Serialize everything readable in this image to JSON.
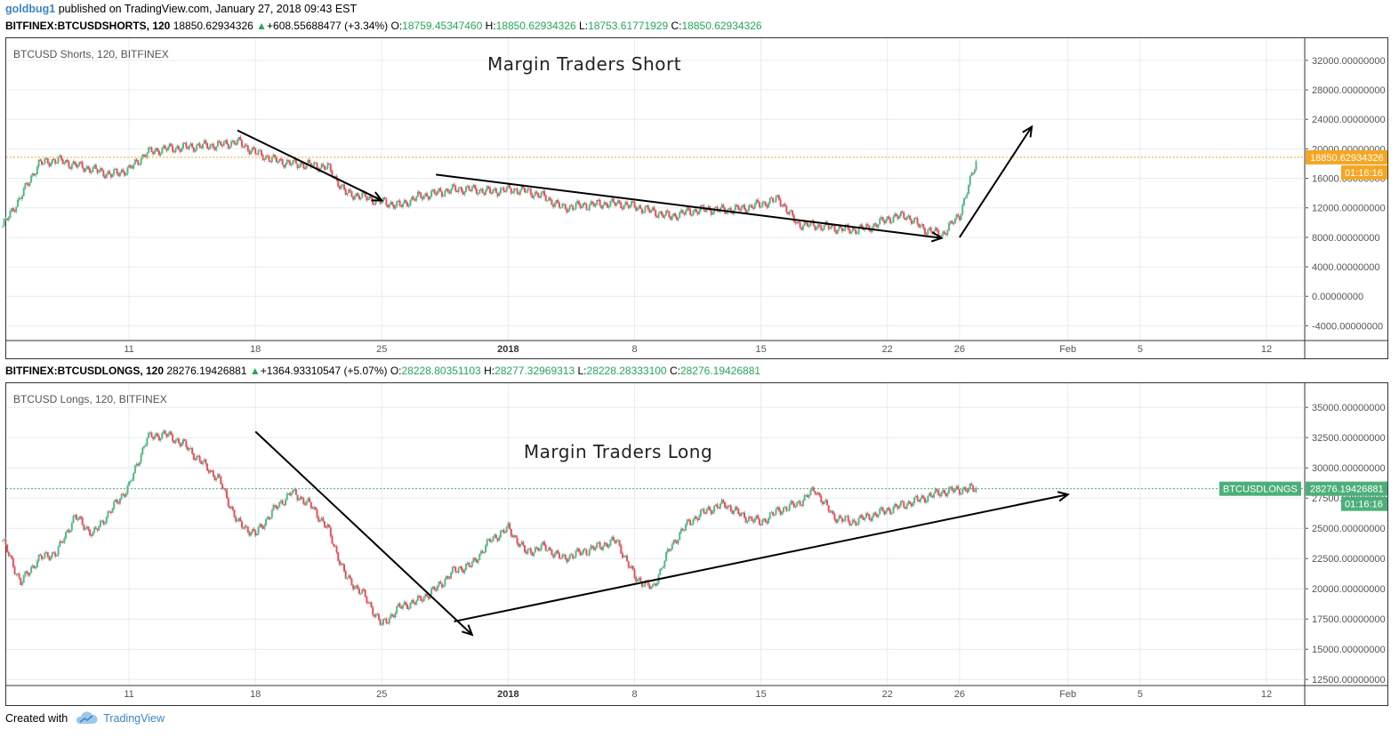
{
  "header": {
    "user": "goldbug1",
    "published": "published on TradingView.com, January 27, 2018 09:43 EST"
  },
  "shorts_header": {
    "symbol": "BITFINEX:BTCUSDSHORTS, 120",
    "price": "18850.62934326",
    "change": "+608.55688477 (+3.34%)",
    "o_label": "O:",
    "o": "18759.45347460",
    "h_label": "H:",
    "h": "18850.62934326",
    "l_label": "L:",
    "l": "18753.61771929",
    "c_label": "C:",
    "c": "18850.62934326"
  },
  "longs_header": {
    "symbol": "BITFINEX:BTCUSDLONGS, 120",
    "price": "28276.19426881",
    "change": "+1364.93310547 (+5.07%)",
    "o_label": "O:",
    "o": "28228.80351103",
    "h_label": "H:",
    "h": "28277.32969313",
    "l_label": "L:",
    "l": "28228.28333100",
    "c_label": "C:",
    "c": "28276.19426881"
  },
  "footer": {
    "created_with": "Created with",
    "brand": "TradingView"
  },
  "colors": {
    "up": "#53b987",
    "down": "#eb4d5c",
    "shorts_price_line": "#f5a623",
    "longs_price_line": "#4caf7a",
    "link": "#3d85c6"
  },
  "chart_data": [
    {
      "type": "candlestick",
      "panel_label": "BTCUSD Shorts, 120, BITFINEX",
      "title": "Margin Traders Short",
      "x_ticks": [
        "11",
        "18",
        "25",
        "2018",
        "8",
        "15",
        "22",
        "26",
        "Feb",
        "5",
        "12"
      ],
      "y_ticks": [
        "32000.00000000",
        "28000.00000000",
        "24000.00000000",
        "20000.00000000",
        "16000.00000000",
        "12000.00000000",
        "8000.00000000",
        "4000.00000000",
        "0.00000000",
        "-4000.00000000"
      ],
      "ylim": [
        -6000,
        35000
      ],
      "last_price_label": "18850.62934326",
      "countdown": "01:16:16",
      "x": [
        "Dec 4",
        "Dec 5",
        "Dec 6",
        "Dec 7",
        "Dec 8",
        "Dec 9",
        "Dec 10",
        "Dec 11",
        "Dec 12",
        "Dec 13",
        "Dec 14",
        "Dec 15",
        "Dec 16",
        "Dec 17",
        "Dec 18",
        "Dec 19",
        "Dec 20",
        "Dec 21",
        "Dec 22",
        "Dec 23",
        "Dec 24",
        "Dec 25",
        "Dec 26",
        "Dec 27",
        "Dec 28",
        "Dec 29",
        "Dec 30",
        "Dec 31",
        "Jan 1",
        "Jan 2",
        "Jan 3",
        "Jan 4",
        "Jan 5",
        "Jan 6",
        "Jan 7",
        "Jan 8",
        "Jan 9",
        "Jan 10",
        "Jan 11",
        "Jan 12",
        "Jan 13",
        "Jan 14",
        "Jan 15",
        "Jan 16",
        "Jan 17",
        "Jan 18",
        "Jan 19",
        "Jan 20",
        "Jan 21",
        "Jan 22",
        "Jan 23",
        "Jan 24",
        "Jan 25",
        "Jan 26",
        "Jan 27"
      ],
      "values": [
        9500,
        13500,
        18000,
        18500,
        17800,
        17200,
        16500,
        17200,
        19500,
        20000,
        20200,
        20400,
        20500,
        21000,
        19500,
        18500,
        18000,
        17800,
        17500,
        14000,
        13500,
        12800,
        12300,
        13500,
        14000,
        14500,
        14500,
        14200,
        14500,
        14300,
        13500,
        12000,
        12300,
        12500,
        12600,
        12200,
        11500,
        10800,
        11500,
        11800,
        11700,
        11900,
        12500,
        13200,
        9800,
        9600,
        9300,
        9000,
        9300,
        10500,
        11000,
        9200,
        8300,
        11000,
        18850
      ],
      "annotations": [
        {
          "from": [
            "Dec 17",
            22500
          ],
          "to": [
            "Dec 25",
            13000
          ]
        },
        {
          "from": [
            "Dec 28",
            16500
          ],
          "to": [
            "Jan 25",
            7900
          ]
        },
        {
          "from": [
            "Jan 26",
            8000
          ],
          "to": [
            "Jan 30",
            23000
          ]
        }
      ]
    },
    {
      "type": "candlestick",
      "panel_label": "BTCUSD Longs, 120, BITFINEX",
      "title": "Margin Traders Long",
      "x_ticks": [
        "11",
        "18",
        "25",
        "2018",
        "8",
        "15",
        "22",
        "26",
        "Feb",
        "5",
        "12"
      ],
      "y_ticks": [
        "35000.00000000",
        "32500.00000000",
        "30000.00000000",
        "27500.00000000",
        "25000.00000000",
        "22500.00000000",
        "20000.00000000",
        "17500.00000000",
        "15000.00000000",
        "12500.00000000"
      ],
      "ylim": [
        12000,
        37000
      ],
      "last_price_label": "28276.19426881",
      "price_line_label": "BTCUSDLONGS",
      "countdown": "01:16:16",
      "x": [
        "Dec 4",
        "Dec 5",
        "Dec 6",
        "Dec 7",
        "Dec 8",
        "Dec 9",
        "Dec 10",
        "Dec 11",
        "Dec 12",
        "Dec 13",
        "Dec 14",
        "Dec 15",
        "Dec 16",
        "Dec 17",
        "Dec 18",
        "Dec 19",
        "Dec 20",
        "Dec 21",
        "Dec 22",
        "Dec 23",
        "Dec 24",
        "Dec 25",
        "Dec 26",
        "Dec 27",
        "Dec 28",
        "Dec 29",
        "Dec 30",
        "Dec 31",
        "Jan 1",
        "Jan 2",
        "Jan 3",
        "Jan 4",
        "Jan 5",
        "Jan 6",
        "Jan 7",
        "Jan 8",
        "Jan 9",
        "Jan 10",
        "Jan 11",
        "Jan 12",
        "Jan 13",
        "Jan 14",
        "Jan 15",
        "Jan 16",
        "Jan 17",
        "Jan 18",
        "Jan 19",
        "Jan 20",
        "Jan 21",
        "Jan 22",
        "Jan 23",
        "Jan 24",
        "Jan 25",
        "Jan 26",
        "Jan 27"
      ],
      "values": [
        24000,
        20500,
        22500,
        23000,
        26000,
        24500,
        26500,
        28500,
        32500,
        32800,
        32000,
        30500,
        29000,
        25500,
        24500,
        26500,
        28000,
        27000,
        25000,
        21000,
        19500,
        17000,
        18500,
        19000,
        20000,
        21500,
        22000,
        24000,
        25000,
        23000,
        23500,
        22500,
        23000,
        23500,
        24000,
        21000,
        20000,
        23500,
        25500,
        26500,
        27000,
        26000,
        25500,
        26500,
        27000,
        28200,
        26000,
        25500,
        26000,
        26500,
        27000,
        27500,
        28000,
        28200,
        28276
      ],
      "annotations": [
        {
          "from": [
            "Dec 18",
            33000
          ],
          "to": [
            "Dec 30",
            16200
          ]
        },
        {
          "from": [
            "Dec 29",
            17300
          ],
          "to": [
            "Feb 1",
            27800
          ]
        }
      ]
    }
  ]
}
